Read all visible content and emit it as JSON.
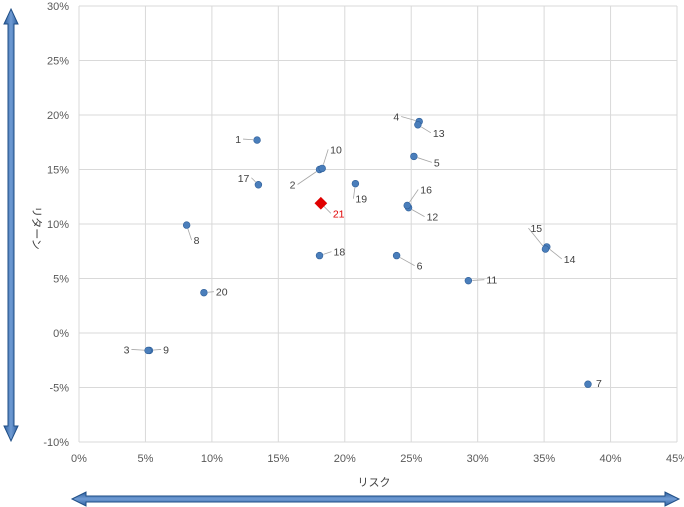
{
  "chart_data": {
    "type": "scatter",
    "xlabel": "リスク",
    "ylabel": "リターン",
    "xlim": [
      0,
      45
    ],
    "ylim": [
      -10,
      30
    ],
    "xticks": [
      "0%",
      "5%",
      "10%",
      "15%",
      "20%",
      "25%",
      "30%",
      "35%",
      "40%",
      "45%"
    ],
    "yticks": [
      "-10%",
      "-5%",
      "0%",
      "5%",
      "10%",
      "15%",
      "20%",
      "25%",
      "30%"
    ],
    "grid": true,
    "colors": {
      "point": "#4a7ebb",
      "highlight": "#e00000",
      "arrow": "#3a6db0"
    },
    "points": [
      {
        "label": "1",
        "x": 13.4,
        "y": 17.7
      },
      {
        "label": "2",
        "x": 18.1,
        "y": 15.0
      },
      {
        "label": "3",
        "x": 5.3,
        "y": -1.6
      },
      {
        "label": "4",
        "x": 25.6,
        "y": 19.4
      },
      {
        "label": "5",
        "x": 25.2,
        "y": 16.2
      },
      {
        "label": "6",
        "x": 23.9,
        "y": 7.1
      },
      {
        "label": "7",
        "x": 38.3,
        "y": -4.7
      },
      {
        "label": "8",
        "x": 8.1,
        "y": 9.9
      },
      {
        "label": "9",
        "x": 5.2,
        "y": -1.6
      },
      {
        "label": "10",
        "x": 18.3,
        "y": 15.1
      },
      {
        "label": "11",
        "x": 29.3,
        "y": 4.8
      },
      {
        "label": "12",
        "x": 24.8,
        "y": 11.5
      },
      {
        "label": "13",
        "x": 25.5,
        "y": 19.1
      },
      {
        "label": "14",
        "x": 35.2,
        "y": 7.9
      },
      {
        "label": "15",
        "x": 35.1,
        "y": 7.7
      },
      {
        "label": "16",
        "x": 24.7,
        "y": 11.7
      },
      {
        "label": "17",
        "x": 13.5,
        "y": 13.6
      },
      {
        "label": "18",
        "x": 18.1,
        "y": 7.1
      },
      {
        "label": "19",
        "x": 20.8,
        "y": 13.7
      },
      {
        "label": "20",
        "x": 9.4,
        "y": 3.7
      },
      {
        "label": "21",
        "x": 18.2,
        "y": 11.9,
        "highlight": true
      }
    ]
  }
}
